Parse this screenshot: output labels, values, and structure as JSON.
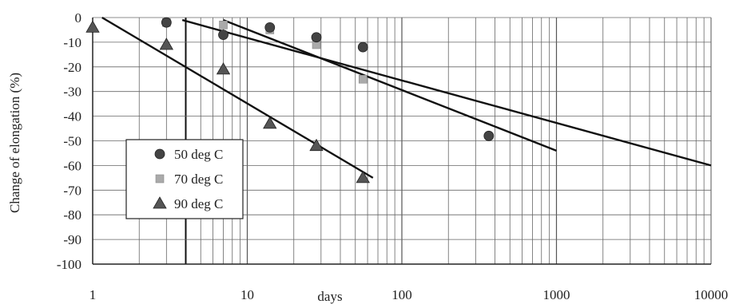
{
  "chart_data": {
    "type": "scatter",
    "xlabel": "days",
    "ylabel": "Change of elongation (%)",
    "x_scale": "log",
    "xlim": [
      1,
      10000
    ],
    "ylim": [
      -100,
      0
    ],
    "x_ticks": [
      1,
      10,
      100,
      1000,
      10000
    ],
    "y_ticks": [
      0,
      -10,
      -20,
      -30,
      -40,
      -50,
      -60,
      -70,
      -80,
      -90,
      -100
    ],
    "x_tick_labels": [
      "1",
      "10",
      "100",
      "1000",
      "10000"
    ],
    "y_tick_labels": [
      "0",
      "-10",
      "-20",
      "-30",
      "-40",
      "-50",
      "-60",
      "-70",
      "-80",
      "-90",
      "-100"
    ],
    "grid": true,
    "legend_position": "left",
    "series": [
      {
        "name": "50 deg C",
        "marker": "circle",
        "color": "#444444",
        "points": [
          {
            "x": 3,
            "y": -2
          },
          {
            "x": 7,
            "y": -7
          },
          {
            "x": 14,
            "y": -4
          },
          {
            "x": 28,
            "y": -8
          },
          {
            "x": 56,
            "y": -12
          },
          {
            "x": 365,
            "y": -48
          }
        ],
        "trend": [
          {
            "x": 7,
            "y": -1
          },
          {
            "x": 1000,
            "y": -54
          }
        ]
      },
      {
        "name": "70 deg C",
        "marker": "square",
        "color": "#aaaaaa",
        "points": [
          {
            "x": 3,
            "y": -2
          },
          {
            "x": 7,
            "y": -3
          },
          {
            "x": 14,
            "y": -5
          },
          {
            "x": 28,
            "y": -11
          },
          {
            "x": 56,
            "y": -25
          }
        ],
        "trend": [
          {
            "x": 3.8,
            "y": -1
          },
          {
            "x": 10000,
            "y": -60
          }
        ]
      },
      {
        "name": "90 deg C",
        "marker": "triangle",
        "color": "#555555",
        "points": [
          {
            "x": 1,
            "y": -4
          },
          {
            "x": 3,
            "y": -11
          },
          {
            "x": 7,
            "y": -21
          },
          {
            "x": 14,
            "y": -43
          },
          {
            "x": 28,
            "y": -52
          },
          {
            "x": 56,
            "y": -65
          }
        ],
        "trend": [
          {
            "x": 1.15,
            "y": 0
          },
          {
            "x": 65,
            "y": -65
          }
        ]
      }
    ]
  }
}
